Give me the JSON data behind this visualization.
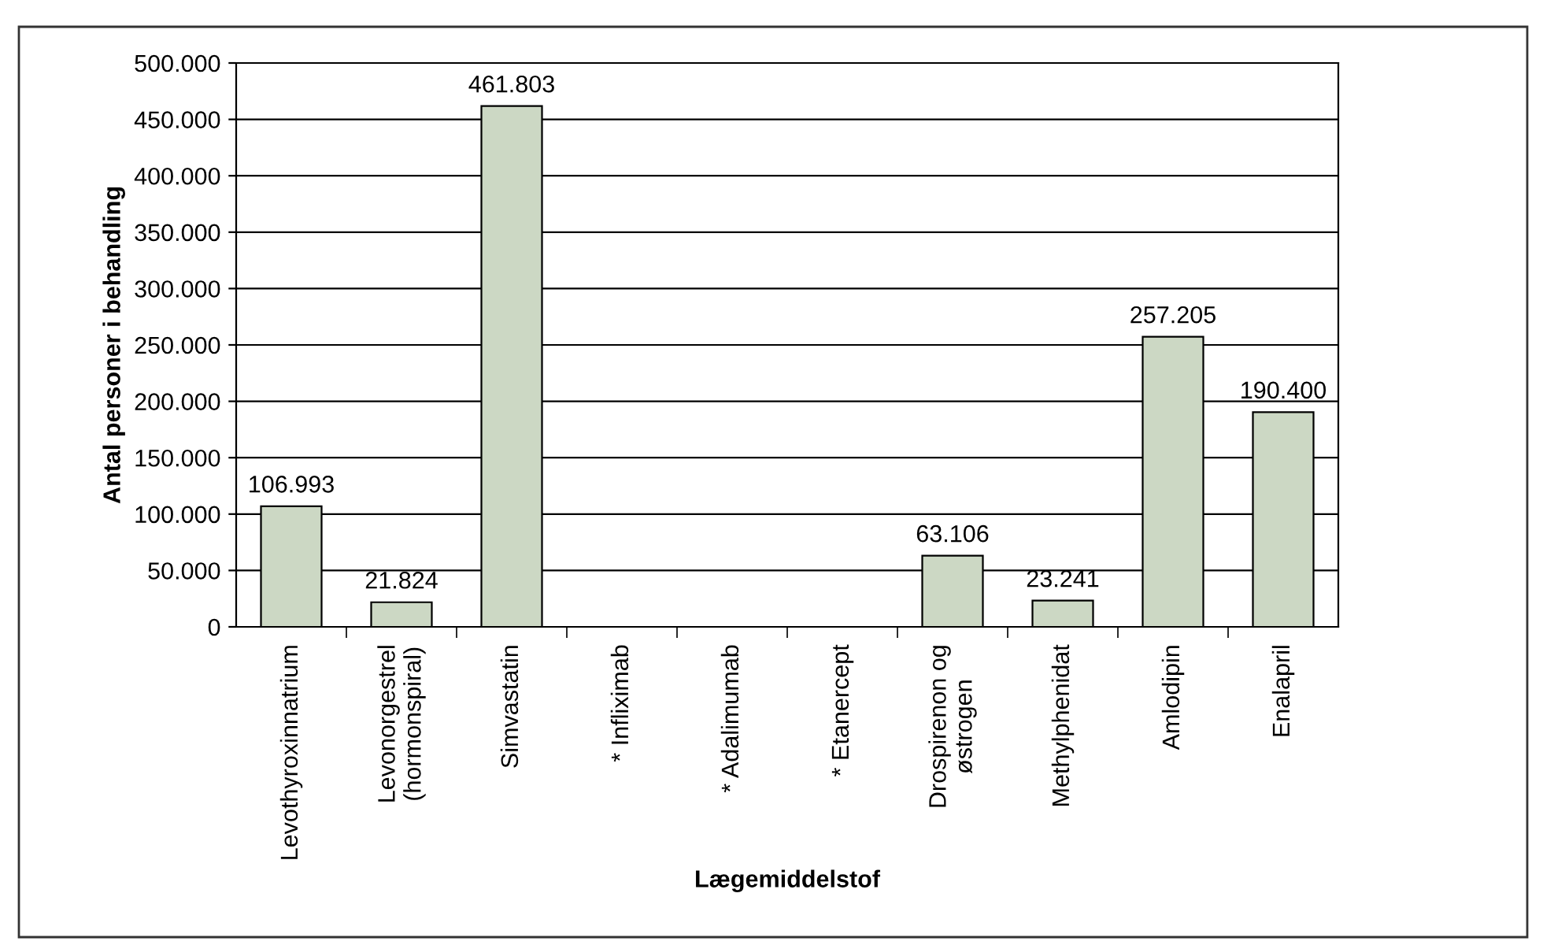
{
  "chart_data": {
    "type": "bar",
    "xlabel": "Lægemiddelstof",
    "ylabel": "Antal personer i behandling",
    "categories": [
      "Levothyroxinnatrium",
      "Levonorgestrel\n(hormonspiral)",
      "Simvastatin",
      "* Infliximab",
      "* Adalimumab",
      "* Etanercept",
      "Drospirenon og\nøstrogen",
      "Methylphenidat",
      "Amlodipin",
      "Enalapril"
    ],
    "values": [
      106993,
      21824,
      461803,
      null,
      null,
      null,
      63106,
      23241,
      257205,
      190400
    ],
    "value_labels": [
      "106.993",
      "21.824",
      "461.803",
      null,
      null,
      null,
      "63.106",
      "23.241",
      "257.205",
      "190.400"
    ],
    "color": "#ccd8c4",
    "ylim": [
      0,
      500000
    ],
    "yticks": [
      {
        "value": 0,
        "label": "0"
      },
      {
        "value": 50000,
        "label": "50.000"
      },
      {
        "value": 100000,
        "label": "100.000"
      },
      {
        "value": 150000,
        "label": "150.000"
      },
      {
        "value": 200000,
        "label": "200.000"
      },
      {
        "value": 250000,
        "label": "250.000"
      },
      {
        "value": 300000,
        "label": "300.000"
      },
      {
        "value": 350000,
        "label": "350.000"
      },
      {
        "value": 400000,
        "label": "400.000"
      },
      {
        "value": 450000,
        "label": "450.000"
      },
      {
        "value": 500000,
        "label": "500.000"
      }
    ],
    "grid": "y",
    "legend": false
  }
}
